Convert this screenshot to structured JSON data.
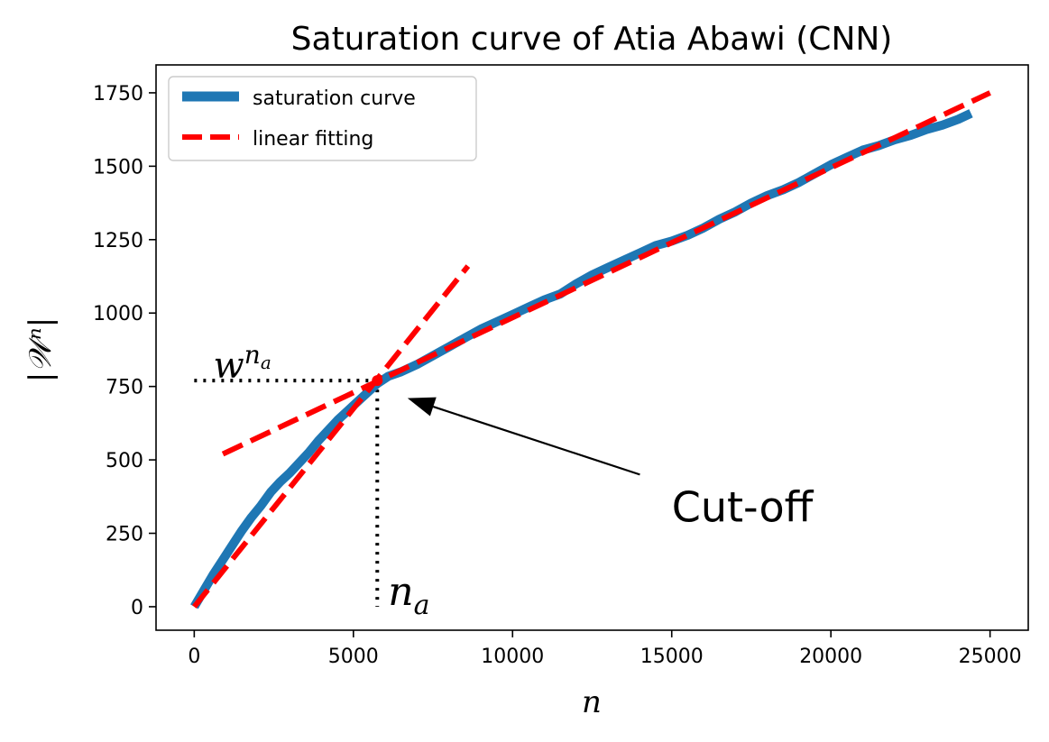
{
  "chart_data": {
    "type": "line",
    "title": "Saturation curve of Atia Abawi (CNN)",
    "xlabel": "n",
    "ylabel": "|𝒲ⁿ|",
    "xlim": [
      -1200,
      26200
    ],
    "ylim": [
      -80,
      1845
    ],
    "xticks": [
      0,
      5000,
      10000,
      15000,
      20000,
      25000
    ],
    "yticks": [
      0,
      250,
      500,
      750,
      1000,
      1250,
      1500,
      1750
    ],
    "grid": false,
    "legend_position": "top-left",
    "series": [
      {
        "name": "saturation curve",
        "color": "#1f77b4",
        "style": "solid",
        "x": [
          0,
          300,
          600,
          900,
          1200,
          1500,
          1800,
          2100,
          2400,
          2700,
          3000,
          3300,
          3600,
          3900,
          4200,
          4500,
          4800,
          5100,
          5400,
          5750,
          6100,
          6500,
          7000,
          7500,
          8000,
          8500,
          9000,
          9500,
          10000,
          10500,
          11000,
          11500,
          12000,
          12500,
          13000,
          13500,
          14000,
          14500,
          15000,
          15500,
          16000,
          16500,
          17000,
          17500,
          18000,
          18500,
          19000,
          19500,
          20000,
          20500,
          21000,
          21500,
          22000,
          22500,
          23000,
          23500,
          24000,
          24400
        ],
        "y": [
          0,
          55,
          110,
          160,
          210,
          260,
          305,
          345,
          390,
          425,
          455,
          490,
          525,
          565,
          600,
          635,
          665,
          695,
          725,
          760,
          785,
          800,
          825,
          855,
          885,
          915,
          945,
          970,
          995,
          1020,
          1045,
          1065,
          1100,
          1130,
          1155,
          1180,
          1205,
          1230,
          1245,
          1265,
          1290,
          1320,
          1345,
          1375,
          1400,
          1420,
          1445,
          1475,
          1505,
          1530,
          1555,
          1570,
          1590,
          1605,
          1625,
          1640,
          1660,
          1680
        ]
      },
      {
        "name": "linear fitting",
        "color": "#ff0000",
        "style": "dashed",
        "segments": [
          {
            "x": [
              0,
              8600
            ],
            "y": [
              0,
              1160
            ]
          },
          {
            "x": [
              900,
              25000
            ],
            "y": [
              520,
              1750
            ]
          }
        ]
      }
    ],
    "annotations": {
      "cutoff_point": {
        "x": 5750,
        "y": 770
      },
      "cutoff_text": "Cut-off",
      "cutoff_text_pos": {
        "x": 15000,
        "y": 290
      },
      "arrow_tail": {
        "x": 14000,
        "y": 450
      },
      "arrow_head": {
        "x": 6700,
        "y": 710
      },
      "na_label": "n",
      "na_subscript": "a",
      "w_label": "w",
      "w_superscript_base": "n",
      "w_superscript_sub": "a"
    }
  }
}
